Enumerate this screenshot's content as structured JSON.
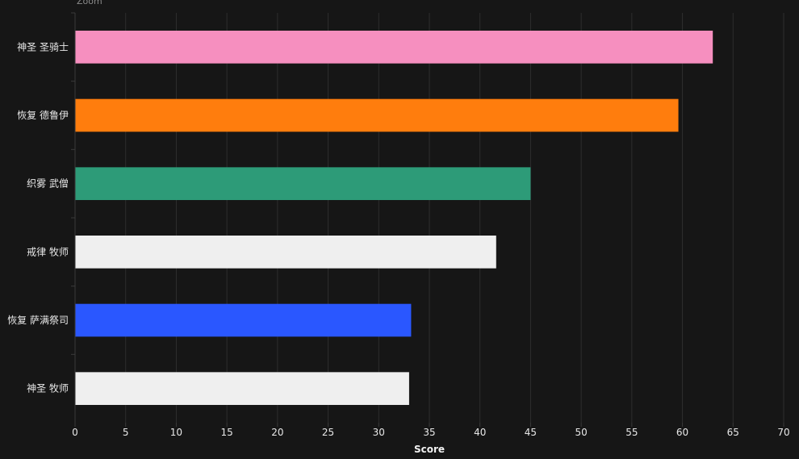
{
  "zoom_label": "Zoom",
  "chart_data": {
    "type": "bar",
    "orientation": "horizontal",
    "title": "",
    "xlabel": "Score",
    "ylabel": "",
    "xlim": [
      0,
      70
    ],
    "xticks": [
      0,
      5,
      10,
      15,
      20,
      25,
      30,
      35,
      40,
      45,
      50,
      55,
      60,
      65,
      70
    ],
    "grid": true,
    "categories": [
      "神圣 圣骑士",
      "恢复 德鲁伊",
      "织雾 武僧",
      "戒律 牧师",
      "恢复 萨满祭司",
      "神圣 牧师"
    ],
    "values": [
      63.0,
      59.6,
      45.0,
      41.6,
      33.2,
      33.0
    ],
    "colors": [
      "#f68fbf",
      "#ff7d0d",
      "#2d9b78",
      "#efefef",
      "#2a57ff",
      "#efefef"
    ]
  }
}
